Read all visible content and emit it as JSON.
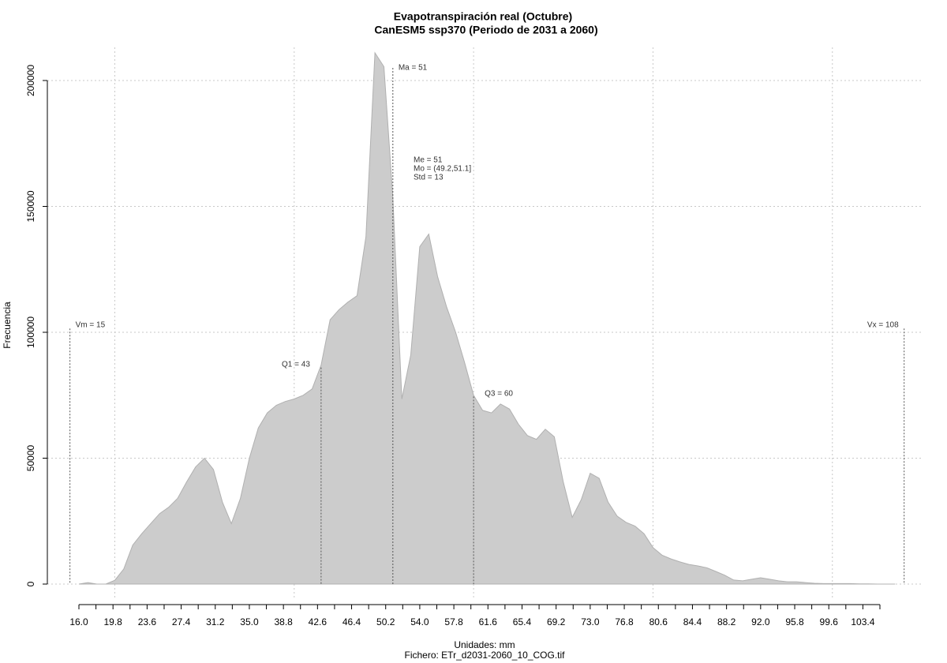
{
  "chart_data": {
    "type": "area",
    "title": "Evapotranspiración real (Octubre)",
    "subtitle": "CanESM5 ssp370 (Periodo de 2031 a 2060)",
    "x_label": "Unidades: mm",
    "caption": "Fichero: ETr_d2031-2060_10_COG.tif",
    "y_label": "Frecuencia",
    "color": "#cccccc",
    "x": [
      16,
      17,
      18,
      19,
      20,
      21,
      22,
      23,
      24,
      25,
      26,
      27,
      28,
      29,
      30,
      31,
      32,
      33,
      34,
      35,
      36,
      37,
      38,
      39,
      40,
      41,
      42,
      43,
      44,
      45,
      46,
      47,
      48,
      49,
      50,
      51,
      52,
      53,
      54,
      55,
      56,
      57,
      58,
      59,
      60,
      61,
      62,
      63,
      64,
      65,
      66,
      67,
      68,
      69,
      70,
      71,
      72,
      73,
      74,
      75,
      76,
      77,
      78,
      79,
      80,
      81,
      82,
      83,
      84,
      85,
      86,
      87,
      88,
      89,
      90,
      91,
      92,
      93,
      94,
      95,
      96,
      97,
      98,
      99,
      100,
      101,
      102,
      103,
      104,
      105,
      106,
      107
    ],
    "values": [
      0,
      600,
      0,
      0,
      1500,
      6000,
      15500,
      20000,
      24000,
      28000,
      30500,
      34000,
      40500,
      46500,
      50000,
      45500,
      32500,
      24000,
      34000,
      50000,
      62000,
      68000,
      71000,
      72500,
      73500,
      75000,
      77500,
      87000,
      105000,
      109000,
      112000,
      114500,
      138000,
      211000,
      205500,
      153500,
      73500,
      91000,
      134000,
      139000,
      122000,
      110000,
      100000,
      88000,
      75000,
      69000,
      68000,
      71500,
      69500,
      63500,
      59000,
      57500,
      61500,
      58500,
      40500,
      26500,
      33500,
      44000,
      42000,
      32500,
      27000,
      24500,
      23000,
      20000,
      14500,
      11500,
      10000,
      8800,
      7800,
      7200,
      6500,
      5000,
      3500,
      1600,
      1300,
      1900,
      2500,
      1900,
      1300,
      900,
      900,
      600,
      300,
      200,
      200,
      200,
      200,
      100,
      100,
      0,
      0,
      0
    ],
    "xlim": [
      16,
      105.3
    ],
    "ylim": [
      0,
      200000
    ],
    "xticks": [
      {
        "value": 16,
        "label": "16.0"
      },
      {
        "value": 19.8,
        "label": "19.8"
      },
      {
        "value": 23.6,
        "label": "23.6"
      },
      {
        "value": 27.4,
        "label": "27.4"
      },
      {
        "value": 31.2,
        "label": "31.2"
      },
      {
        "value": 35,
        "label": "35.0"
      },
      {
        "value": 38.8,
        "label": "38.8"
      },
      {
        "value": 42.6,
        "label": "42.6"
      },
      {
        "value": 46.4,
        "label": "46.4"
      },
      {
        "value": 50.2,
        "label": "50.2"
      },
      {
        "value": 54,
        "label": "54.0"
      },
      {
        "value": 57.8,
        "label": "57.8"
      },
      {
        "value": 61.6,
        "label": "61.6"
      },
      {
        "value": 65.4,
        "label": "65.4"
      },
      {
        "value": 69.2,
        "label": "69.2"
      },
      {
        "value": 73,
        "label": "73.0"
      },
      {
        "value": 76.8,
        "label": "76.8"
      },
      {
        "value": 80.6,
        "label": "80.6"
      },
      {
        "value": 84.4,
        "label": "84.4"
      },
      {
        "value": 88.2,
        "label": "88.2"
      },
      {
        "value": 92,
        "label": "92.0"
      },
      {
        "value": 95.8,
        "label": "95.8"
      },
      {
        "value": 99.6,
        "label": "99.6"
      },
      {
        "value": 103.4,
        "label": "103.4"
      }
    ],
    "xticks_minor": [
      17.9,
      21.7,
      25.5,
      29.3,
      33.1,
      36.9,
      40.7,
      44.5,
      48.3,
      52.1,
      55.9,
      59.7,
      63.5,
      67.3,
      71.1,
      74.9,
      78.7,
      82.5,
      86.3,
      90.1,
      93.9,
      97.7,
      101.5,
      105.3
    ],
    "yticks": [
      0,
      50000,
      100000,
      150000,
      200000
    ],
    "xgrid": [
      20,
      40,
      60,
      80,
      100
    ],
    "grid": true,
    "markers": [
      {
        "label": "Vm = 15",
        "x": 15
      },
      {
        "label": "Q1 = 43",
        "x": 43
      },
      {
        "label": "Ma = 51",
        "x": 51
      },
      {
        "label": "Q3 = 60",
        "x": 60
      },
      {
        "label": "Vx = 108",
        "x": 108
      }
    ],
    "stats": [
      "Me = 51",
      "Mo = (49.2,51.1]",
      "Std = 13"
    ]
  }
}
